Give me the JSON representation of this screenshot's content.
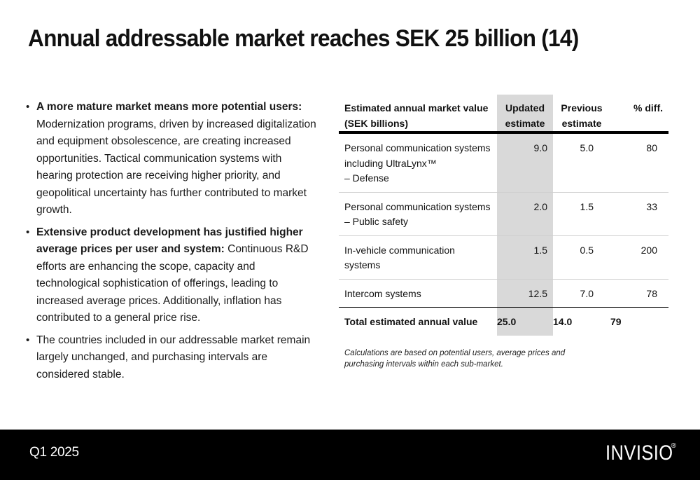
{
  "title": "Annual addressable market reaches SEK 25 billion (14)",
  "bullets": [
    {
      "bold": "A more mature market means more potential users:",
      "text": "Modernization programs, driven by increased digitalization and equipment obsolescence, are creating increased opportunities. Tactical communication systems with hearing protection are receiving higher priority, and geopolitical uncertainty has further contributed to market growth."
    },
    {
      "bold": "Extensive product development has justified higher average prices per user and system:",
      "text": " Continuous R&D efforts are enhancing the scope, capacity and technological sophistication of offerings, leading to increased average prices. Additionally, inflation has contributed to a general price rise."
    },
    {
      "bold": "",
      "text": "The countries included in our addressable market remain largely unchanged, and purchasing intervals are considered stable."
    }
  ],
  "table": {
    "headers": {
      "label_line1": "Estimated annual market value",
      "label_line2": "(SEK billions)",
      "updated_line1": "Updated",
      "updated_line2": "estimate",
      "previous_line1": "Previous",
      "previous_line2": "estimate",
      "diff": "% diff."
    },
    "rows": [
      {
        "label": [
          "Personal communication systems",
          "including UltraLynx™",
          "– Defense"
        ],
        "updated": "9.0",
        "previous": "5.0",
        "diff": "80"
      },
      {
        "label": [
          "Personal communication systems",
          "– Public safety"
        ],
        "updated": "2.0",
        "previous": "1.5",
        "diff": "33"
      },
      {
        "label": [
          "In-vehicle communication",
          "systems"
        ],
        "updated": "1.5",
        "previous": "0.5",
        "diff": "200"
      },
      {
        "label": [
          "Intercom systems"
        ],
        "updated": "12.5",
        "previous": "7.0",
        "diff": "78"
      }
    ],
    "total": {
      "label": "Total estimated annual value",
      "updated": "25.0",
      "previous": "14.0",
      "diff": "79"
    },
    "note": "Calculations are based on potential users, average prices and purchasing intervals within each sub-market."
  },
  "footer": {
    "period": "Q1 2025",
    "logo": "INVISIO",
    "registered": "®"
  }
}
